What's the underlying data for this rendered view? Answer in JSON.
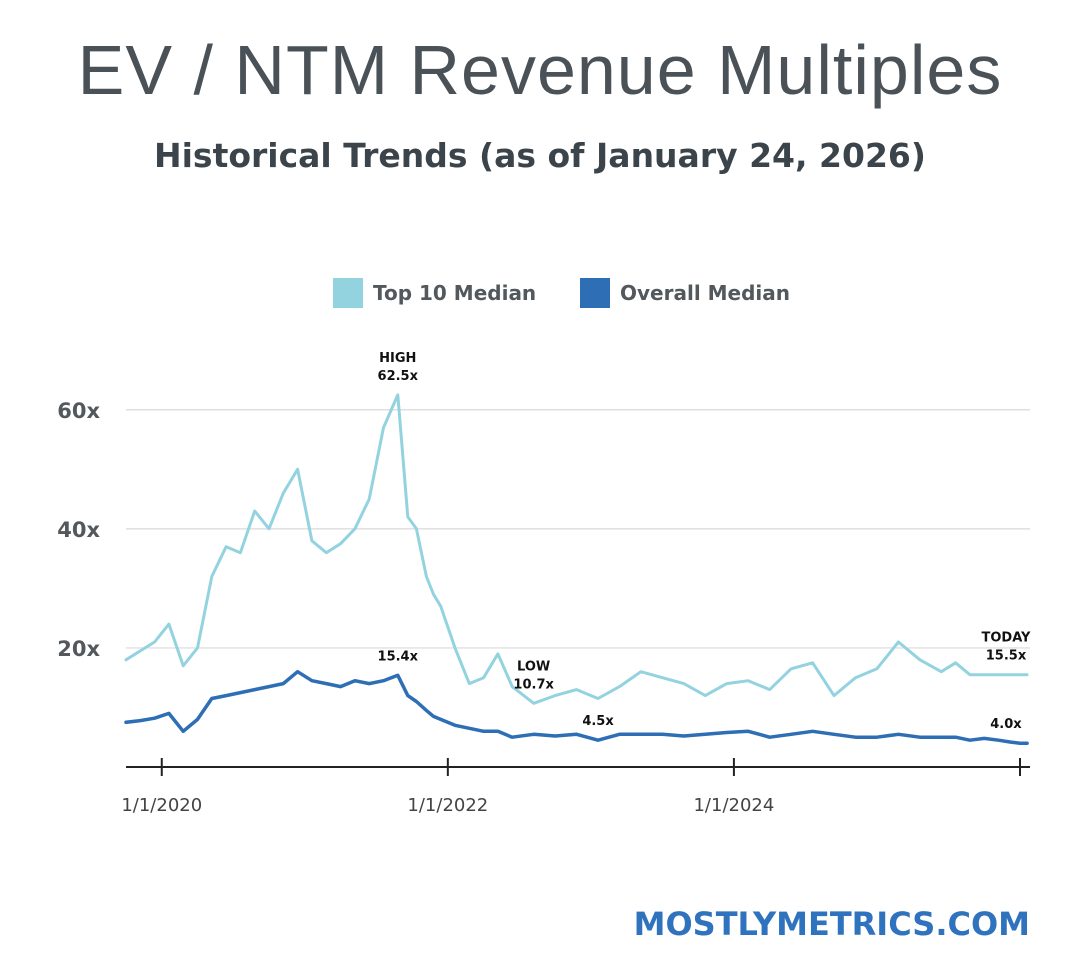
{
  "header": {
    "title": "EV / NTM Revenue Multiples",
    "subtitle": "Historical Trends (as of January 24, 2026)"
  },
  "footer": {
    "site": "MOSTLYMETRICS.COM"
  },
  "colors": {
    "top10": "#93d3e0",
    "overall": "#2d6eb5",
    "grid": "#d9d9d9",
    "axis": "#222222"
  },
  "chart_data": {
    "type": "line",
    "title": "EV / NTM Revenue Multiples",
    "subtitle": "Historical Trends (as of January 24, 2026)",
    "xlabel": "",
    "ylabel": "",
    "ylim": [
      0,
      65
    ],
    "yticks": [
      {
        "value": 20,
        "label": "20x"
      },
      {
        "value": 40,
        "label": "40x"
      },
      {
        "value": 60,
        "label": "60x"
      }
    ],
    "xlim": [
      2019.75,
      2026.07
    ],
    "xticks": [
      {
        "value": 2020.0,
        "label": "1/1/2020"
      },
      {
        "value": 2022.0,
        "label": "1/1/2022"
      },
      {
        "value": 2024.0,
        "label": "1/1/2024"
      },
      {
        "value": 2026.0,
        "label": ""
      }
    ],
    "legend_position": "top-center",
    "series": [
      {
        "name": "Top 10 Median",
        "color": "#93d3e0",
        "x": [
          2019.75,
          2019.85,
          2019.95,
          2020.05,
          2020.15,
          2020.25,
          2020.35,
          2020.45,
          2020.55,
          2020.65,
          2020.75,
          2020.85,
          2020.95,
          2021.05,
          2021.15,
          2021.25,
          2021.35,
          2021.45,
          2021.55,
          2021.65,
          2021.72,
          2021.78,
          2021.85,
          2021.9,
          2021.95,
          2022.05,
          2022.15,
          2022.25,
          2022.35,
          2022.45,
          2022.6,
          2022.75,
          2022.9,
          2023.05,
          2023.2,
          2023.35,
          2023.5,
          2023.65,
          2023.8,
          2023.95,
          2024.1,
          2024.25,
          2024.4,
          2024.55,
          2024.7,
          2024.85,
          2025.0,
          2025.15,
          2025.3,
          2025.45,
          2025.55,
          2025.65,
          2025.75,
          2025.85,
          2025.93,
          2026.0,
          2026.05
        ],
        "values": [
          18.0,
          19.5,
          21.0,
          24.0,
          17.0,
          20.0,
          32.0,
          37.0,
          36.0,
          43.0,
          40.0,
          46.0,
          50.0,
          38.0,
          36.0,
          37.5,
          40.0,
          45.0,
          57.0,
          62.5,
          42.0,
          40.0,
          32.0,
          29.0,
          27.0,
          20.0,
          14.0,
          15.0,
          19.0,
          13.5,
          10.7,
          12.0,
          13.0,
          11.5,
          13.5,
          16.0,
          15.0,
          14.0,
          12.0,
          14.0,
          14.5,
          13.0,
          16.5,
          17.5,
          12.0,
          15.0,
          16.5,
          21.0,
          18.0,
          16.0,
          17.5,
          15.5,
          15.5,
          15.5,
          15.5,
          15.5,
          15.5
        ]
      },
      {
        "name": "Overall Median",
        "color": "#2d6eb5",
        "x": [
          2019.75,
          2019.85,
          2019.95,
          2020.05,
          2020.15,
          2020.25,
          2020.35,
          2020.45,
          2020.55,
          2020.65,
          2020.75,
          2020.85,
          2020.95,
          2021.05,
          2021.15,
          2021.25,
          2021.35,
          2021.45,
          2021.55,
          2021.65,
          2021.72,
          2021.78,
          2021.85,
          2021.9,
          2021.95,
          2022.05,
          2022.15,
          2022.25,
          2022.35,
          2022.45,
          2022.6,
          2022.75,
          2022.9,
          2023.05,
          2023.2,
          2023.35,
          2023.5,
          2023.65,
          2023.8,
          2023.95,
          2024.1,
          2024.25,
          2024.4,
          2024.55,
          2024.7,
          2024.85,
          2025.0,
          2025.15,
          2025.3,
          2025.45,
          2025.55,
          2025.65,
          2025.75,
          2025.85,
          2025.93,
          2026.0,
          2026.05
        ],
        "values": [
          7.5,
          7.8,
          8.2,
          9.0,
          6.0,
          8.0,
          11.5,
          12.0,
          12.5,
          13.0,
          13.5,
          14.0,
          16.0,
          14.5,
          14.0,
          13.5,
          14.5,
          14.0,
          14.5,
          15.4,
          12.0,
          11.0,
          9.5,
          8.5,
          8.0,
          7.0,
          6.5,
          6.0,
          6.0,
          5.0,
          5.5,
          5.2,
          5.5,
          4.5,
          5.5,
          5.5,
          5.5,
          5.2,
          5.5,
          5.8,
          6.0,
          5.0,
          5.5,
          6.0,
          5.5,
          5.0,
          5.0,
          5.5,
          5.0,
          5.0,
          5.0,
          4.5,
          4.8,
          4.5,
          4.2,
          4.0,
          4.0
        ]
      }
    ],
    "annotations": [
      {
        "series": "Top 10 Median",
        "x": 2021.65,
        "y": 62.5,
        "label": "HIGH",
        "value": "62.5x"
      },
      {
        "series": "Top 10 Median",
        "x": 2022.6,
        "y": 10.7,
        "label": "LOW",
        "value": "10.7x"
      },
      {
        "series": "Top 10 Median",
        "x": 2026.0,
        "y": 15.5,
        "label": "TODAY",
        "value": "15.5x"
      },
      {
        "series": "Overall Median",
        "x": 2021.65,
        "y": 15.4,
        "label": "",
        "value": "15.4x"
      },
      {
        "series": "Overall Median",
        "x": 2023.05,
        "y": 4.5,
        "label": "",
        "value": "4.5x"
      },
      {
        "series": "Overall Median",
        "x": 2026.0,
        "y": 4.0,
        "label": "",
        "value": "4.0x"
      }
    ]
  }
}
